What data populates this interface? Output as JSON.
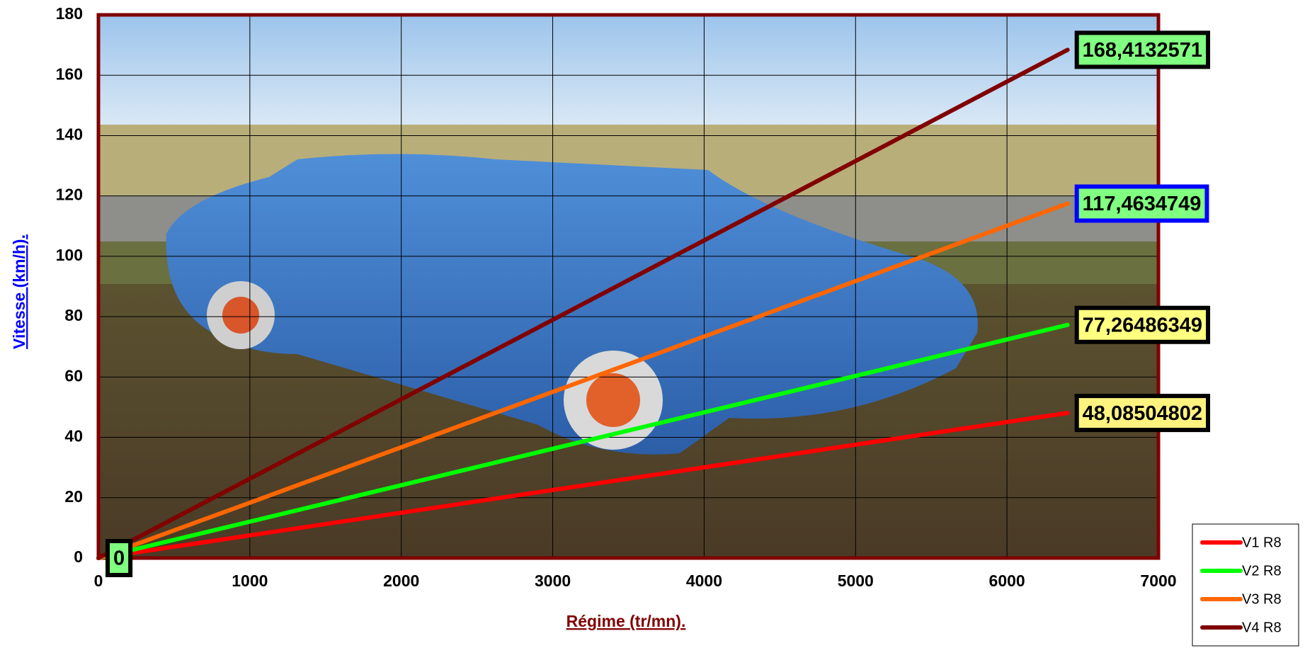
{
  "chart_data": {
    "type": "line",
    "x_label": "Régime (tr/mn).",
    "y_label": "Vitesse (km/h).",
    "x": [
      0,
      6400
    ],
    "series": [
      {
        "name": "V1 R8",
        "color": "#ff0000",
        "values": [
          0,
          48.08504802
        ],
        "value_labels": [
          "0",
          "48,08504802"
        ]
      },
      {
        "name": "V2 R8",
        "color": "#00ff00",
        "values": [
          0,
          77.26486349
        ],
        "value_labels": [
          null,
          "77,26486349"
        ]
      },
      {
        "name": "V3 R8",
        "color": "#ff6600",
        "values": [
          0,
          117.4634749
        ],
        "value_labels": [
          null,
          "117,4634749"
        ]
      },
      {
        "name": "V4 R8",
        "color": "#800000",
        "values": [
          0,
          168.4132571
        ],
        "value_labels": [
          null,
          "168,4132571"
        ]
      }
    ],
    "xlim": [
      0,
      7000
    ],
    "xticks": [
      0,
      1000,
      2000,
      3000,
      4000,
      5000,
      6000,
      7000
    ],
    "ylim": [
      0,
      180
    ],
    "yticks": [
      0,
      20,
      40,
      60,
      80,
      100,
      120,
      140,
      160,
      180
    ],
    "grid": true,
    "legend": "bottom-right"
  }
}
